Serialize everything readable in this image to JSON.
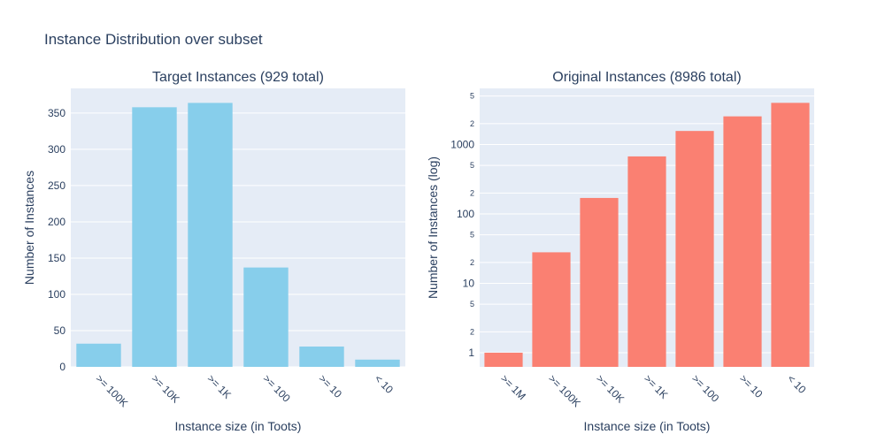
{
  "title": "Instance Distribution over subset",
  "chart_data": [
    {
      "type": "bar",
      "title": "Target Instances (929 total)",
      "x_label": "Instance size (in Toots)",
      "y_label": "Number of Instances",
      "categories": [
        ">= 100K",
        ">= 10K",
        ">= 1K",
        ">= 100",
        ">= 10",
        "< 10"
      ],
      "values": [
        32,
        358,
        364,
        137,
        28,
        10
      ],
      "color": "#87ceeb",
      "ylim": [
        0,
        384
      ],
      "yticks": [
        0,
        50,
        100,
        150,
        200,
        250,
        300,
        350
      ],
      "grid": true,
      "log": false
    },
    {
      "type": "bar",
      "title": "Original Instances (8986 total)",
      "x_label": "Instance size (in Toots)",
      "y_label": "Number of Instances (log)",
      "categories": [
        ">= 1M",
        ">= 100K",
        ">= 10K",
        ">= 1K",
        ">= 100",
        ">= 10",
        "< 10"
      ],
      "values": [
        1,
        28,
        170,
        675,
        1570,
        2550,
        3992
      ],
      "color": "#fa8072",
      "ylim": [
        0.625,
        6450
      ],
      "yticks": [
        1,
        2,
        5,
        10,
        {
          "value": 20,
          "label": "2"
        },
        {
          "value": 50,
          "label": "5"
        },
        100,
        {
          "value": 200,
          "label": "2"
        },
        {
          "value": 500,
          "label": "5"
        },
        1000,
        {
          "value": 2000,
          "label": "2"
        },
        {
          "value": 5000,
          "label": "5"
        }
      ],
      "grid": true,
      "log": true
    }
  ]
}
